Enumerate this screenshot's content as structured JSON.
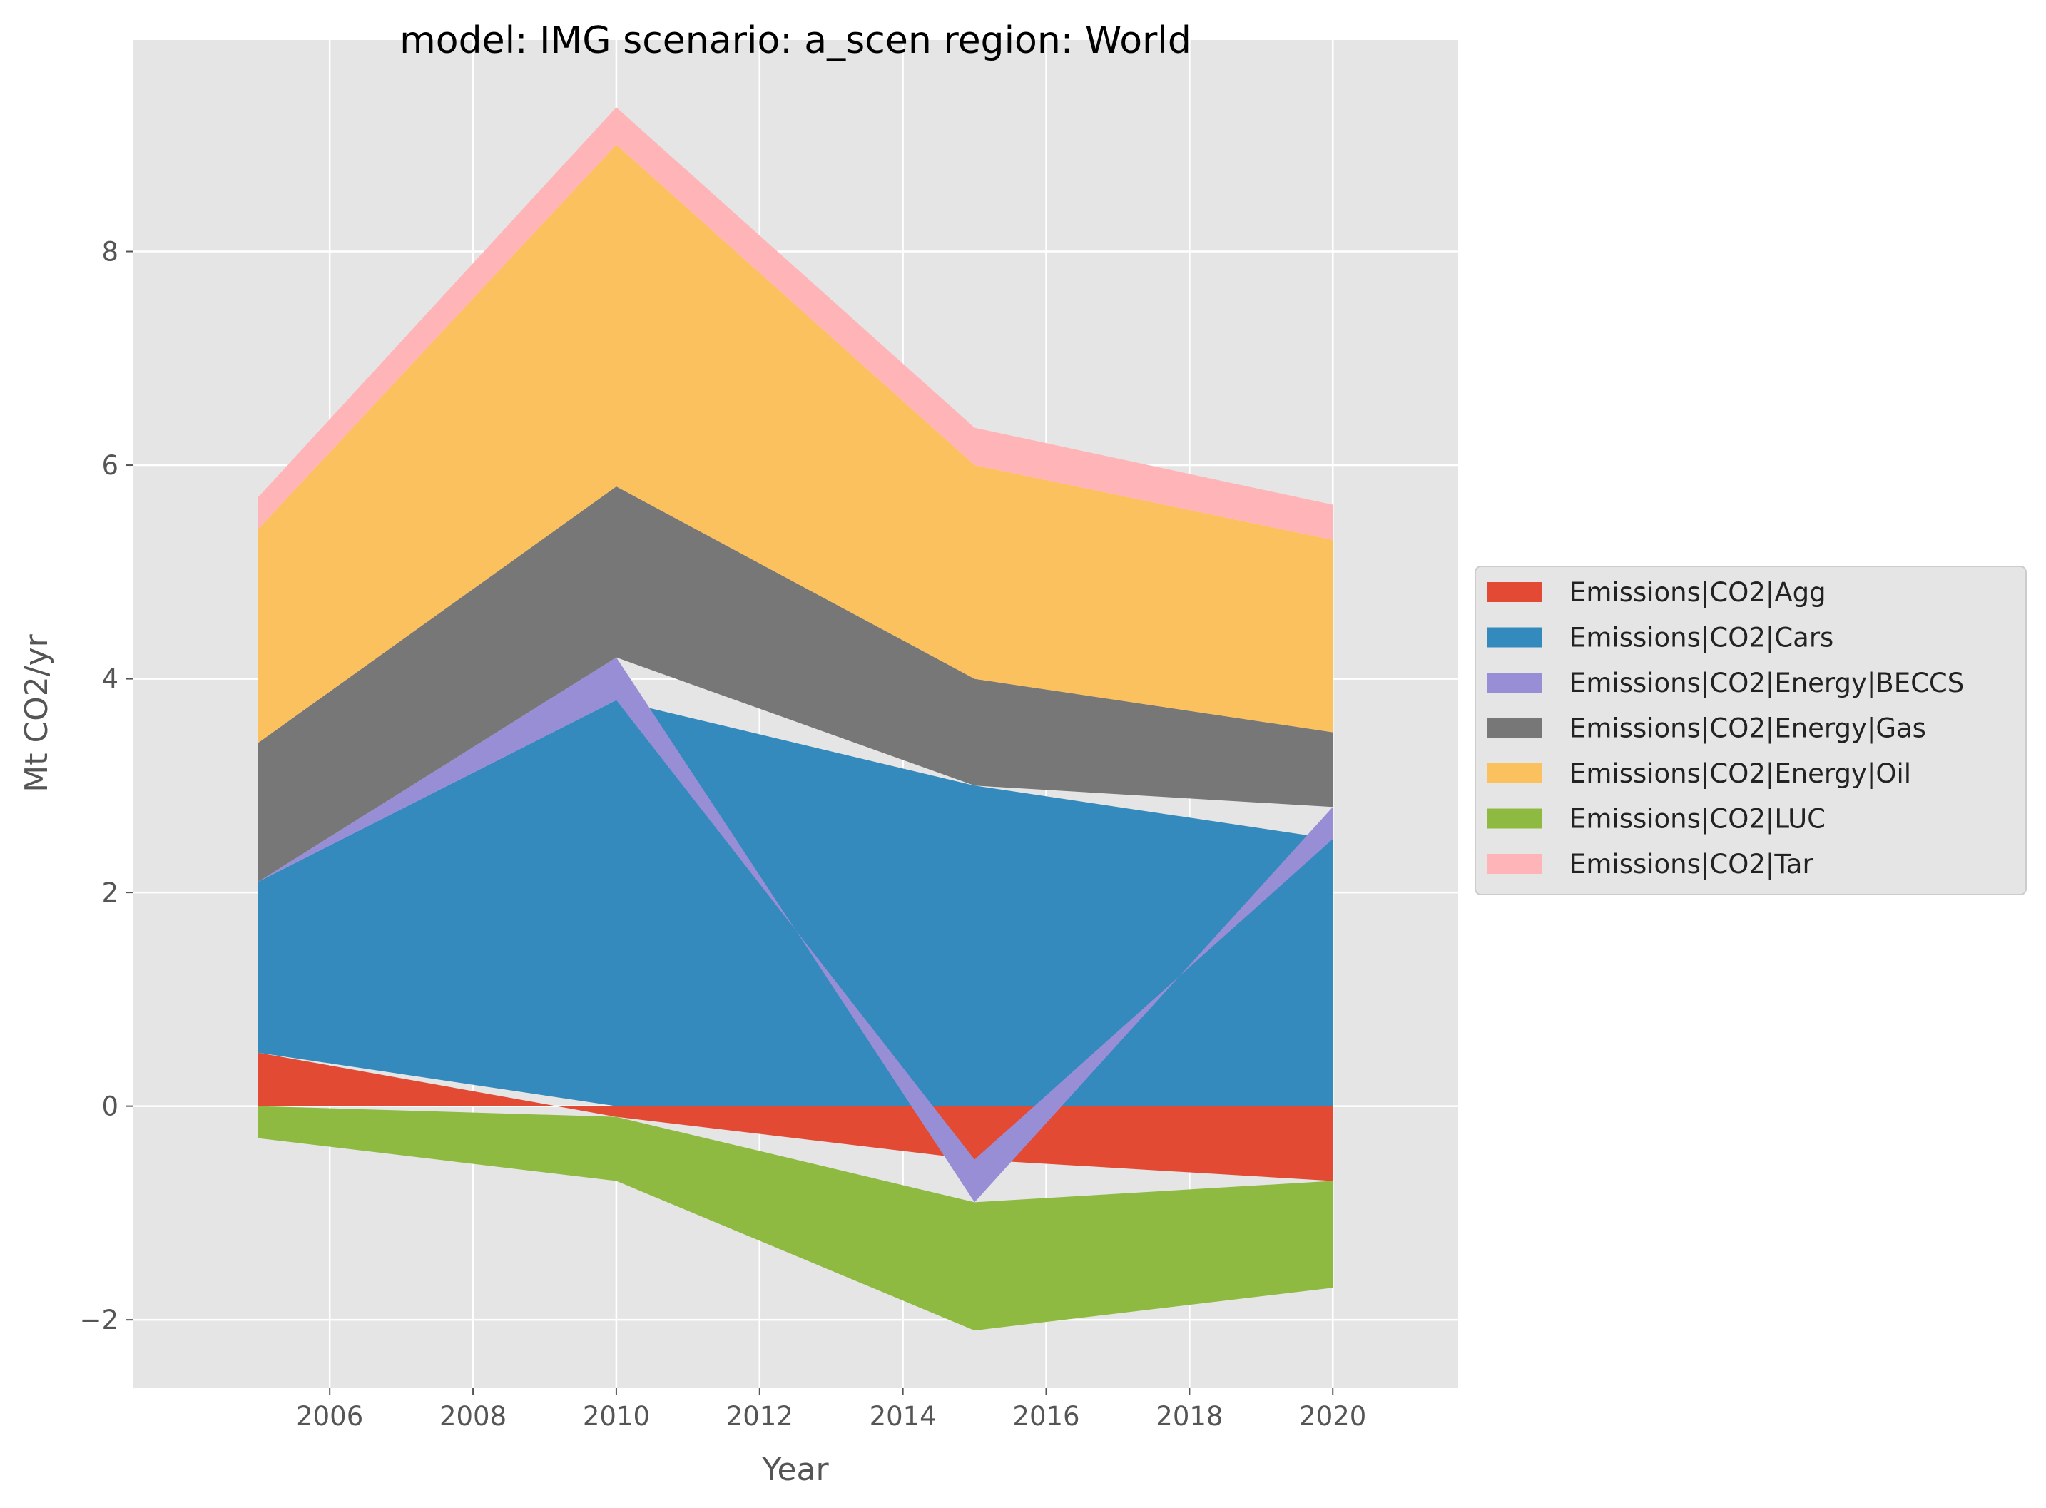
{
  "chart_data": {
    "type": "area",
    "title": "model: IMG scenario: a_scen region: World",
    "xlabel": "Year",
    "ylabel": "Mt CO2/yr",
    "xlim": [
      2003.25,
      2021.75
    ],
    "ylim": [
      -2.64,
      9.98
    ],
    "x_ticks": [
      2006,
      2008,
      2010,
      2012,
      2014,
      2016,
      2018,
      2020
    ],
    "y_ticks": [
      -2,
      0,
      2,
      4,
      6,
      8
    ],
    "grid": true,
    "stacked": true,
    "legend_position": "center-right-outside",
    "x": [
      2005,
      2010,
      2015,
      2020
    ],
    "series": [
      {
        "name": "Emissions|CO2|Agg",
        "color": "#E24A33",
        "values": [
          0.5,
          -0.1,
          -0.5,
          -0.7
        ]
      },
      {
        "name": "Emissions|CO2|Cars",
        "color": "#348ABD",
        "values": [
          1.6,
          3.8,
          3.0,
          2.5
        ]
      },
      {
        "name": "Emissions|CO2|Energy|BECCS",
        "color": "#988ED5",
        "values": [
          0.0,
          0.4,
          -0.4,
          0.3
        ]
      },
      {
        "name": "Emissions|CO2|Energy|Gas",
        "color": "#777777",
        "values": [
          1.3,
          1.6,
          1.0,
          0.7
        ]
      },
      {
        "name": "Emissions|CO2|Energy|Oil",
        "color": "#FBC15E",
        "values": [
          2.0,
          3.2,
          2.0,
          1.8
        ]
      },
      {
        "name": "Emissions|CO2|LUC",
        "color": "#8EBA42",
        "values": [
          -0.3,
          -0.6,
          -1.2,
          -1.0
        ]
      },
      {
        "name": "Emissions|CO2|Tar",
        "color": "#FFB5B8",
        "values": [
          0.3,
          0.35,
          0.35,
          0.33
        ]
      }
    ]
  }
}
